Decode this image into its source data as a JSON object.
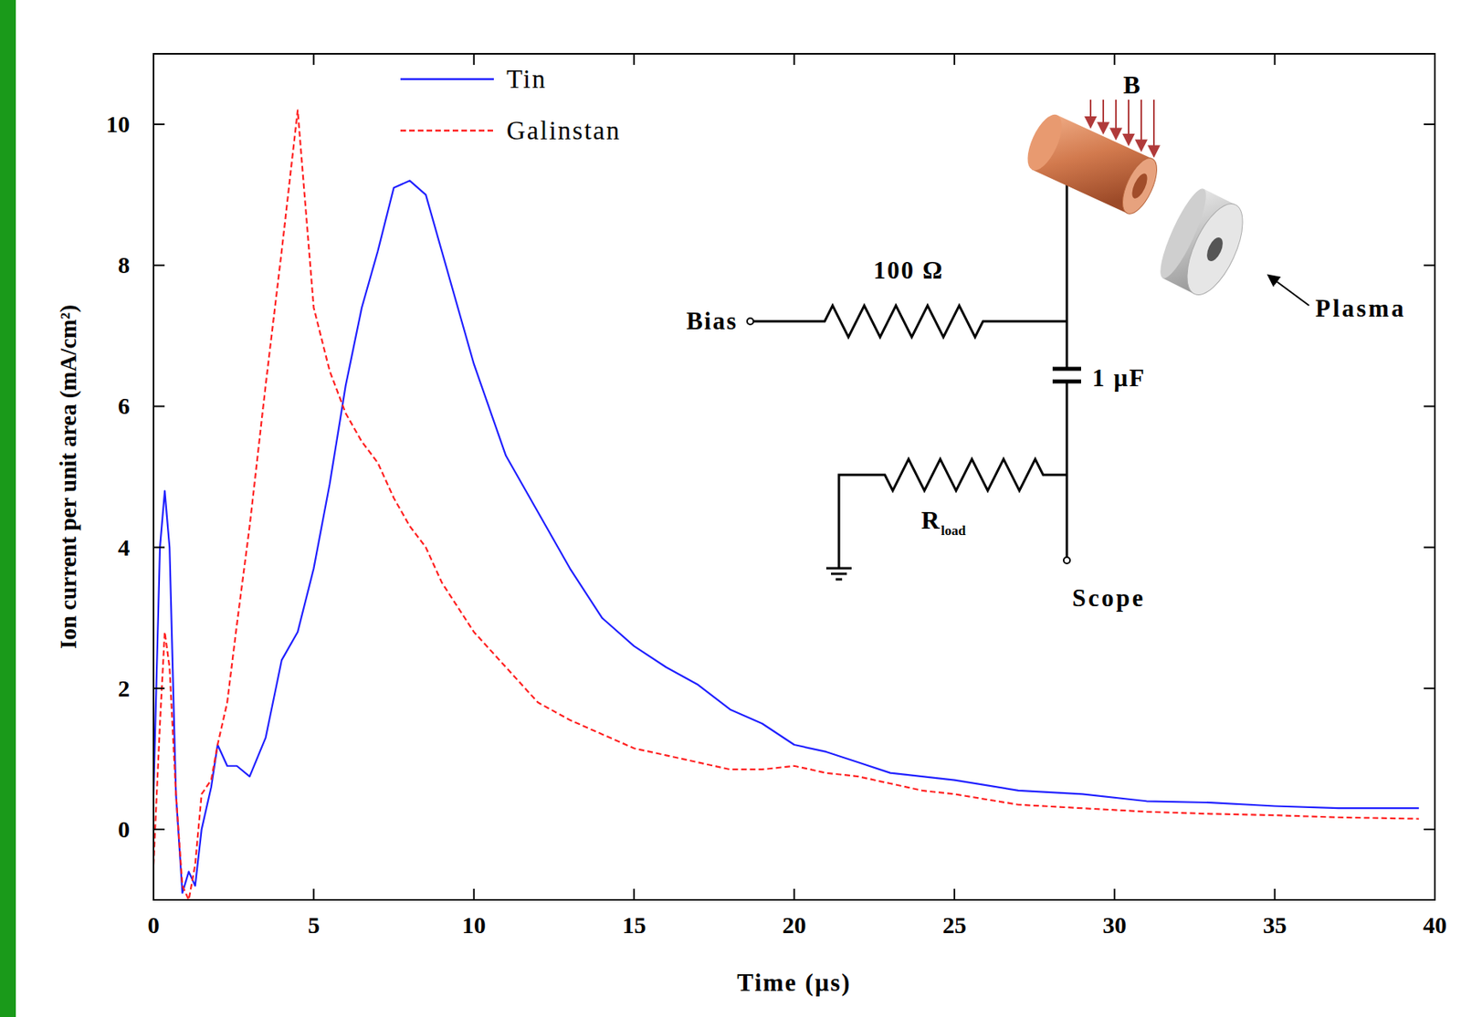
{
  "chart_data": {
    "type": "line",
    "x_label": "Time (μs)",
    "y_label": "Ion current per unit area (mA/cm²)",
    "x": [
      0,
      0.2,
      0.35,
      0.5,
      0.7,
      0.9,
      1.1,
      1.3,
      1.5,
      1.8,
      2,
      2.3,
      2.6,
      3,
      3.5,
      4,
      4.5,
      5,
      5.5,
      6,
      6.5,
      7,
      7.5,
      8,
      8.5,
      9,
      10,
      11,
      12,
      13,
      14,
      15,
      16,
      17,
      18,
      19,
      20,
      21,
      22,
      23,
      24,
      25,
      27,
      29,
      31,
      33,
      35,
      37,
      39.5
    ],
    "series": [
      {
        "name": "Tin",
        "color": "#1f1fff",
        "line_style": "solid",
        "values": [
          0.5,
          4.0,
          4.8,
          4.0,
          0.5,
          -0.9,
          -0.6,
          -0.8,
          0.0,
          0.6,
          1.2,
          0.9,
          0.9,
          0.75,
          1.3,
          2.4,
          2.8,
          3.7,
          4.9,
          6.3,
          7.4,
          8.2,
          9.1,
          9.2,
          9.0,
          8.2,
          6.6,
          5.3,
          4.5,
          3.7,
          3.0,
          2.6,
          2.3,
          2.05,
          1.7,
          1.5,
          1.2,
          1.1,
          0.95,
          0.8,
          0.75,
          0.7,
          0.55,
          0.5,
          0.4,
          0.38,
          0.33,
          0.3,
          0.3
        ]
      },
      {
        "name": "Galinstan",
        "color": "#ff2020",
        "line_style": "dashed",
        "values": [
          -0.5,
          1.5,
          2.8,
          2.3,
          0.5,
          -0.8,
          -1.0,
          -0.5,
          0.5,
          0.7,
          1.2,
          1.8,
          2.9,
          4.3,
          6.3,
          8.2,
          10.2,
          7.4,
          6.5,
          5.9,
          5.5,
          5.2,
          4.7,
          4.3,
          4.0,
          3.5,
          2.8,
          2.3,
          1.8,
          1.55,
          1.35,
          1.15,
          1.05,
          0.95,
          0.85,
          0.85,
          0.9,
          0.8,
          0.75,
          0.65,
          0.55,
          0.5,
          0.35,
          0.3,
          0.25,
          0.22,
          0.2,
          0.17,
          0.15
        ]
      }
    ],
    "xlim": [
      0,
      40
    ],
    "xticks": [
      0,
      5,
      10,
      15,
      20,
      25,
      30,
      35,
      40
    ],
    "ylim": [
      -1,
      11
    ],
    "yticks": [
      0,
      2,
      4,
      6,
      8,
      10
    ],
    "grid": false,
    "legend": "top",
    "annotations": [
      "B",
      "Bias",
      "100 Ω",
      "1 μF",
      "R",
      "load",
      "Scope",
      "Plasma"
    ]
  }
}
